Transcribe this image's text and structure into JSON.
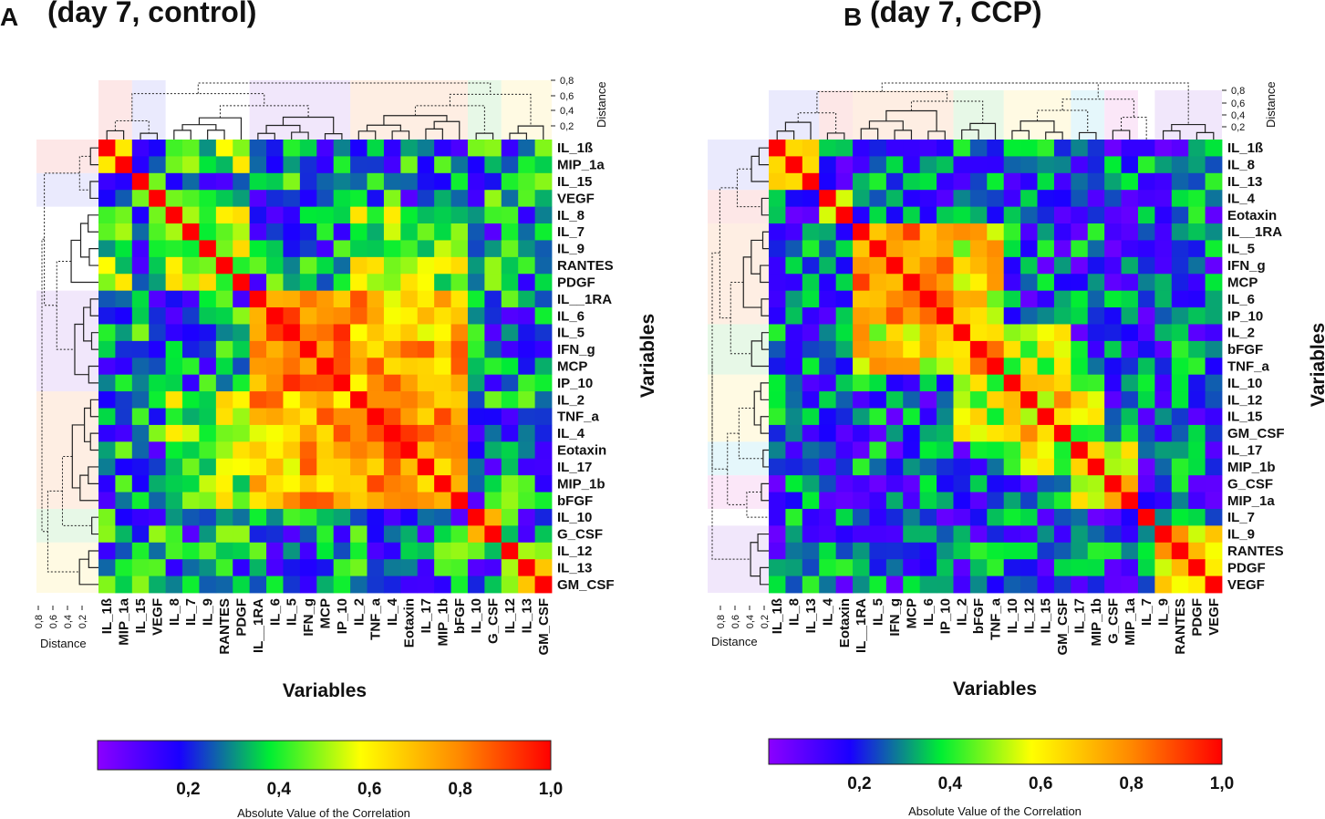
{
  "colors": {
    "scale": [
      "#8b00ff",
      "#1a00ff",
      "#00ee33",
      "#ffff00",
      "#ff8800",
      "#ff0000"
    ],
    "scale_stops": [
      0.0,
      0.18,
      0.38,
      0.58,
      0.8,
      1.0
    ],
    "band_colors": [
      "#fbd3d3",
      "#d8d8fb",
      "#e6d3f7",
      "#fde0cc",
      "#d3f3d3",
      "#fff6cc",
      "#cff0f8",
      "#f8d3f3"
    ]
  },
  "chart_data": [
    {
      "type": "heatmap",
      "panel_letter": "A",
      "title": "(day 7, control)",
      "xlabel": "Variables",
      "ylabel": "Variables",
      "colorbar_label": "Absolute Value of the Correlation",
      "colorbar_ticks": [
        "0,2",
        "0,4",
        "0,6",
        "0,8",
        "1,0"
      ],
      "colorbar_tick_values": [
        0.2,
        0.4,
        0.6,
        0.8,
        1.0
      ],
      "colorbar_range": [
        0.0,
        1.0
      ],
      "distance_label": "Distance",
      "distance_ticks": [
        "0,8",
        "0,6",
        "0,4",
        "0,2"
      ],
      "distance_tick_values": [
        0.8,
        0.6,
        0.4,
        0.2
      ],
      "variables": [
        "IL_1ß",
        "MIP_1a",
        "IL_15",
        "VEGF",
        "IL_8",
        "IL_7",
        "IL_9",
        "RANTES",
        "PDGF",
        "IL__1RA",
        "IL_6",
        "IL_5",
        "IFN_g",
        "MCP",
        "IP_10",
        "IL_2",
        "TNF_a",
        "IL_4",
        "Eotaxin",
        "IL_17",
        "MIP_1b",
        "bFGF",
        "IL_10",
        "G_CSF",
        "IL_12",
        "IL_13",
        "GM_CSF"
      ],
      "clusters": [
        {
          "start": 0,
          "end": 1,
          "band": 0,
          "strength": 0.6
        },
        {
          "start": 2,
          "end": 3,
          "band": 1,
          "strength": 0.58
        },
        {
          "start": 4,
          "end": 8,
          "band": -1,
          "strength": 0.52
        },
        {
          "start": 9,
          "end": 14,
          "band": 2,
          "strength": 0.82
        },
        {
          "start": 15,
          "end": 21,
          "band": 3,
          "strength": 0.78
        },
        {
          "start": 22,
          "end": 23,
          "band": 4,
          "strength": 0.7
        },
        {
          "start": 24,
          "end": 26,
          "band": 5,
          "strength": 0.55
        }
      ],
      "cross_clusters": [
        {
          "a": 3,
          "b": 4,
          "strength": 0.72
        },
        {
          "a": 0,
          "b": 2,
          "strength": 0.45
        },
        {
          "a": 2,
          "b": 4,
          "strength": 0.5
        }
      ],
      "baseline_range": [
        0.08,
        0.5
      ],
      "seed": 7
    },
    {
      "type": "heatmap",
      "panel_letter": "B",
      "title": "(day 7, CCP)",
      "xlabel": "Variables",
      "ylabel": "Variables",
      "colorbar_label": "Absolute Value of the Correlation",
      "colorbar_ticks": [
        "0,2",
        "0,4",
        "0,6",
        "0,8",
        "1,0"
      ],
      "colorbar_tick_values": [
        0.2,
        0.4,
        0.6,
        0.8,
        1.0
      ],
      "colorbar_range": [
        0.0,
        1.0
      ],
      "distance_label": "Distance",
      "distance_ticks": [
        "0,8",
        "0,6",
        "0,4",
        "0,2"
      ],
      "distance_tick_values": [
        0.8,
        0.6,
        0.4,
        0.2
      ],
      "variables": [
        "IL_1ß",
        "IL_8",
        "IL_13",
        "IL_4",
        "Eotaxin",
        "IL__1RA",
        "IL_5",
        "IFN_g",
        "MCP",
        "IL_6",
        "IP_10",
        "IL_2",
        "bFGF",
        "TNF_a",
        "IL_10",
        "IL_12",
        "IL_15",
        "GM_CSF",
        "IL_17",
        "MIP_1b",
        "G_CSF",
        "MIP_1a",
        "IL_7",
        "IL_9",
        "RANTES",
        "PDGF",
        "VEGF"
      ],
      "clusters": [
        {
          "start": 0,
          "end": 2,
          "band": 1,
          "strength": 0.62
        },
        {
          "start": 3,
          "end": 4,
          "band": 0,
          "strength": 0.68
        },
        {
          "start": 5,
          "end": 10,
          "band": 3,
          "strength": 0.82
        },
        {
          "start": 11,
          "end": 13,
          "band": 4,
          "strength": 0.74
        },
        {
          "start": 14,
          "end": 17,
          "band": 5,
          "strength": 0.66
        },
        {
          "start": 18,
          "end": 19,
          "band": 6,
          "strength": 0.72
        },
        {
          "start": 20,
          "end": 21,
          "band": 7,
          "strength": 0.7
        },
        {
          "start": 22,
          "end": 22,
          "band": -1,
          "strength": 0.2
        },
        {
          "start": 23,
          "end": 26,
          "band": 2,
          "strength": 0.66
        }
      ],
      "cross_clusters": [
        {
          "a": 2,
          "b": 3,
          "strength": 0.62
        },
        {
          "a": 3,
          "b": 4,
          "strength": 0.55
        },
        {
          "a": 4,
          "b": 5,
          "strength": 0.55
        },
        {
          "a": 5,
          "b": 6,
          "strength": 0.52
        }
      ],
      "baseline_range": [
        0.05,
        0.42
      ],
      "seed": 19
    }
  ]
}
